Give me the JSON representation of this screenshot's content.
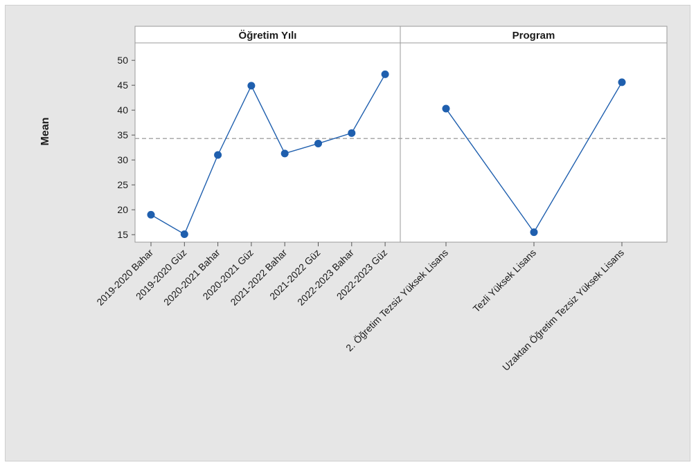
{
  "chart_data": {
    "type": "line",
    "ylabel": "Mean",
    "ylim": [
      13.5,
      53.5
    ],
    "yticks": [
      15,
      20,
      25,
      30,
      35,
      40,
      45,
      50
    ],
    "reference_line": 34.3,
    "grid": false,
    "colors": {
      "series": "#1f5fae",
      "reference": "#a9a9a9",
      "panel_bg": "#ffffff",
      "frame_bg": "#e6e6e6"
    },
    "panels": [
      {
        "title": "Öğretim Yılı",
        "categories": [
          "2019-2020 Bahar",
          "2019-2020 Güz",
          "2020-2021 Bahar",
          "2020-2021 Güz",
          "2021-2022 Bahar",
          "2021-2022 Güz",
          "2022-2023 Bahar",
          "2022-2023 Güz"
        ],
        "values": [
          19.0,
          15.1,
          31.0,
          44.9,
          31.3,
          33.3,
          35.4,
          47.2
        ]
      },
      {
        "title": "Program",
        "categories": [
          "2. Öğretim Tezsiz Yüksek Lisans",
          "Tezli Yüksek Lisans",
          "Uzaktan Öğretim Tezsiz Yüksek Lisans"
        ],
        "values": [
          40.3,
          15.5,
          45.6
        ]
      }
    ]
  }
}
